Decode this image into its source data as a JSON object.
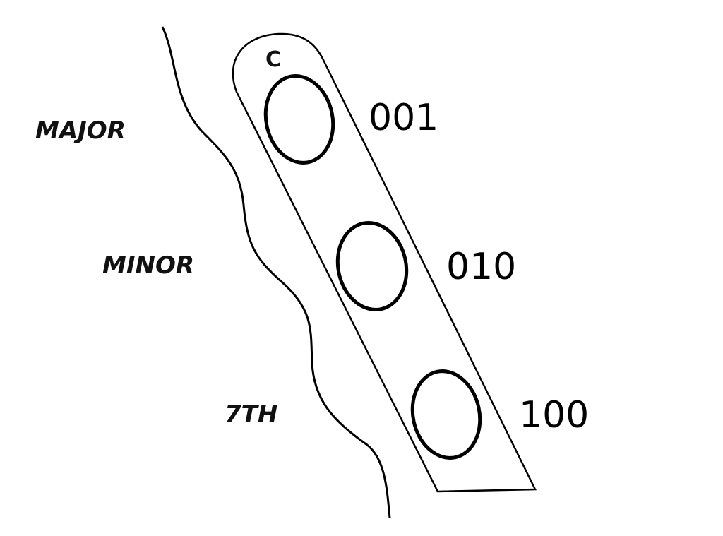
{
  "key_label": "C",
  "rows": [
    {
      "chord": "MAJOR",
      "code": "001"
    },
    {
      "chord": "MINOR",
      "code": "010"
    },
    {
      "chord": "7TH",
      "code": "100"
    }
  ],
  "colors": {
    "ink": "#000000",
    "background": "#ffffff"
  }
}
